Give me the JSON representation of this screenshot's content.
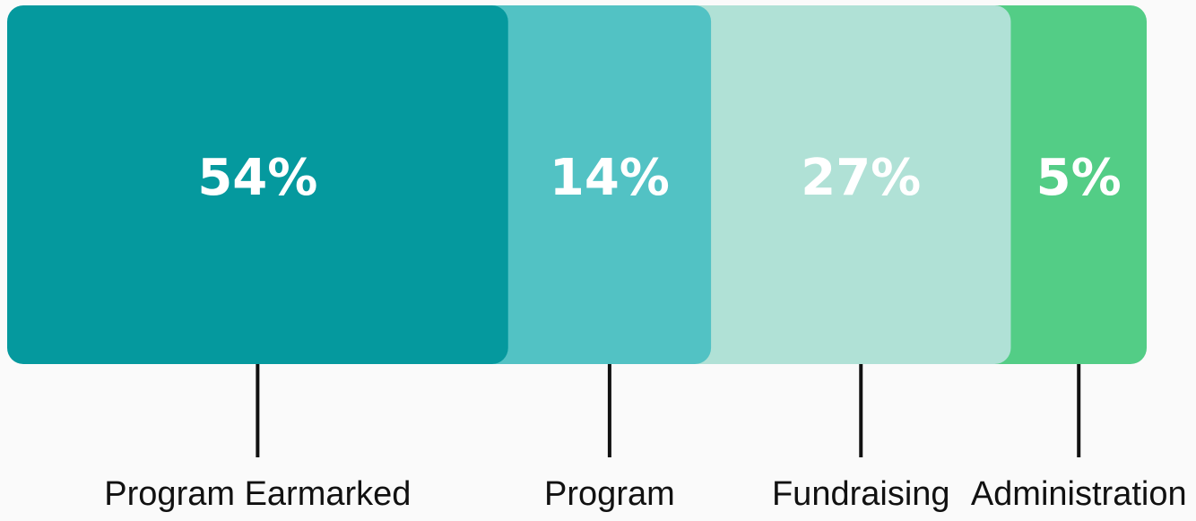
{
  "chart_data": {
    "type": "stacked-bar",
    "categories": [
      "Program Earmarked",
      "Program",
      "Fundraising",
      "Administration"
    ],
    "values": [
      54,
      14,
      27,
      5
    ],
    "value_labels": [
      "54%",
      "14%",
      "27%",
      "5%"
    ],
    "colors": [
      "#05999e",
      "#52c2c4",
      "#b0e1d6",
      "#53cd86"
    ]
  }
}
